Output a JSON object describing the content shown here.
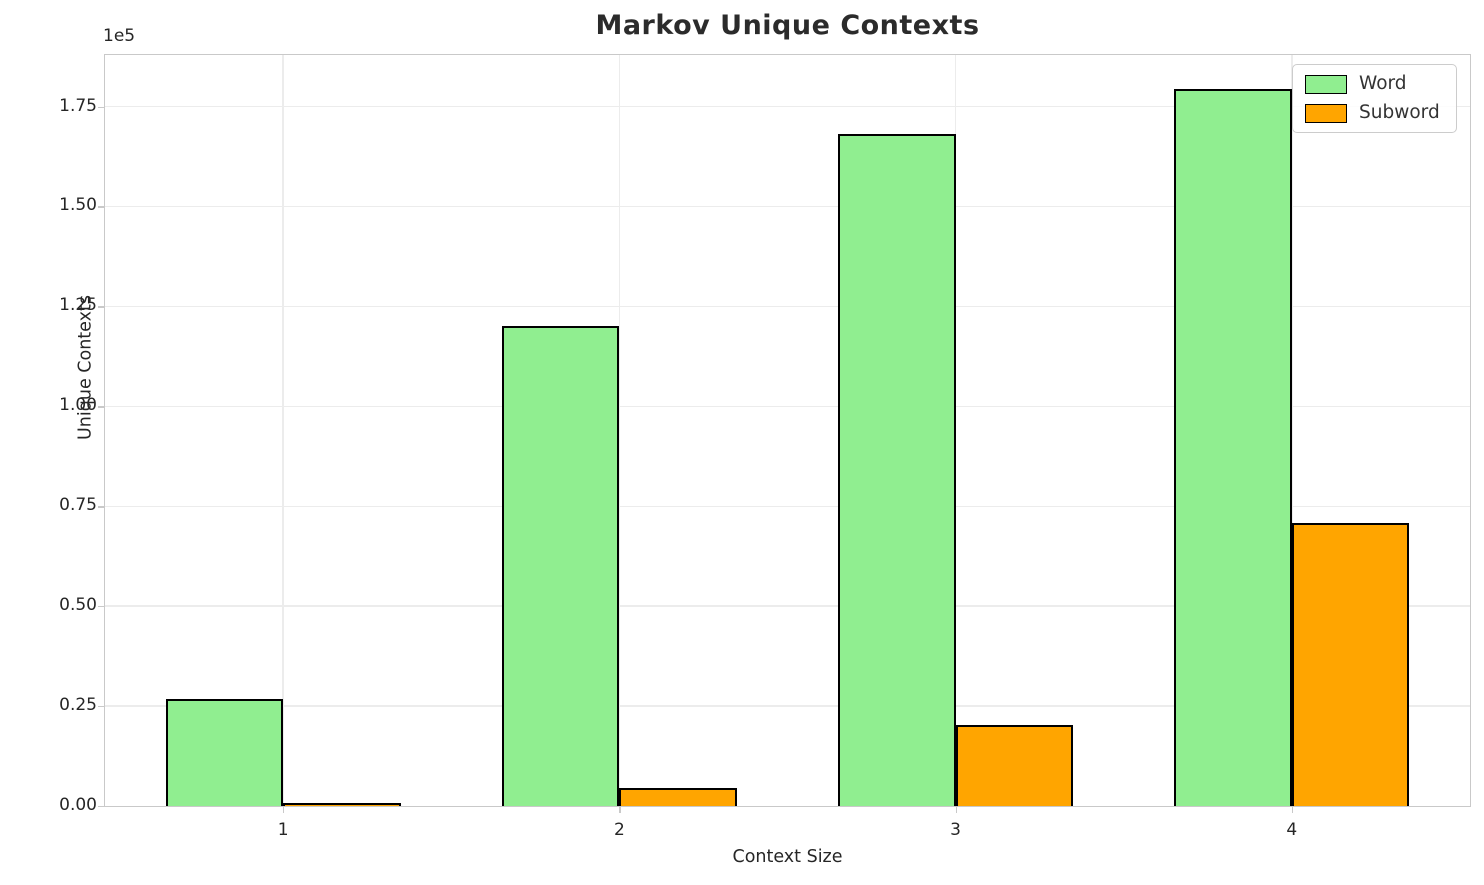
{
  "figure": {
    "title": "Markov Unique Contexts",
    "axis_scale_offset": "1e5"
  },
  "chart_data": {
    "type": "bar",
    "title": "Markov Unique Contexts",
    "xlabel": "Context Size",
    "ylabel": "Unique Contexts",
    "categories": [
      "1",
      "2",
      "3",
      "4"
    ],
    "series": [
      {
        "name": "Word",
        "color": "#90EE90",
        "values": [
          26700,
          120000,
          168200,
          179300
        ]
      },
      {
        "name": "Subword",
        "color": "#FFA500",
        "values": [
          800,
          4500,
          20200,
          70800
        ]
      }
    ],
    "bar_edge_color": "#000000",
    "bar_width_data_units": 0.35,
    "xlim": [
      0.47,
      4.53
    ],
    "ylim": [
      0,
      187900
    ],
    "yticks": {
      "values": [
        0,
        25000,
        50000,
        75000,
        100000,
        125000,
        150000,
        175000
      ],
      "labels": [
        "0.00",
        "0.25",
        "0.50",
        "0.75",
        "1.00",
        "1.25",
        "1.50",
        "1.75"
      ]
    },
    "xticks": {
      "values": [
        1,
        2,
        3,
        4
      ],
      "labels": [
        "1",
        "2",
        "3",
        "4"
      ]
    },
    "scale_offset_label": "1e5",
    "grid": true,
    "grid_color": "#ececec",
    "spine_color": "#c9c9c9",
    "legend_position": "upper right"
  }
}
